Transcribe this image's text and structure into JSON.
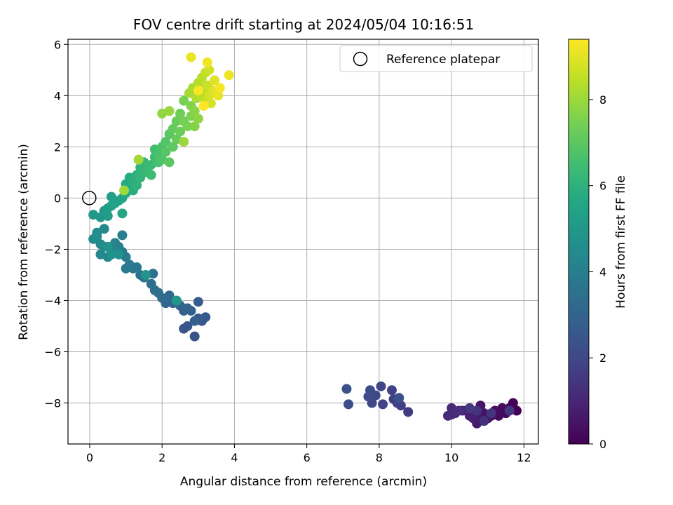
{
  "chart_data": {
    "type": "scatter",
    "title": "FOV centre drift starting at 2024/05/04 10:16:51",
    "xlabel": "Angular distance from reference (arcmin)",
    "ylabel": "Rotation from reference (arcmin)",
    "xlim": [
      -0.6,
      12.4
    ],
    "ylim": [
      -9.6,
      6.2
    ],
    "xticks": [
      0,
      2,
      4,
      6,
      8,
      10,
      12
    ],
    "yticks": [
      -8,
      -6,
      -4,
      -2,
      0,
      2,
      4,
      6
    ],
    "grid": true,
    "legend": {
      "placement": "top-right",
      "entries": [
        "Reference platepar"
      ]
    },
    "reference_point": {
      "x": 0,
      "y": 0
    },
    "colorbar": {
      "label": "Hours from first FF file",
      "colormap": "viridis",
      "range": [
        0,
        9.4
      ],
      "ticks": [
        0,
        2,
        4,
        6,
        8
      ]
    },
    "series": [
      {
        "points": [
          [
            11.8,
            -8.3
          ],
          [
            11.7,
            -8.0
          ],
          [
            11.6,
            -8.2
          ],
          [
            11.5,
            -8.4
          ],
          [
            11.4,
            -8.2
          ],
          [
            11.3,
            -8.5
          ],
          [
            11.2,
            -8.3
          ],
          [
            11.1,
            -8.5
          ],
          [
            11.0,
            -8.6
          ],
          [
            10.9,
            -8.4
          ],
          [
            10.8,
            -8.1
          ],
          [
            10.8,
            -8.6
          ],
          [
            10.7,
            -8.8
          ],
          [
            10.6,
            -8.4
          ],
          [
            10.6,
            -8.6
          ],
          [
            10.5,
            -8.5
          ],
          [
            10.4,
            -8.3
          ],
          [
            10.3,
            -8.3
          ],
          [
            10.1,
            -8.4
          ],
          [
            10.0,
            -8.2
          ],
          [
            9.9,
            -8.5
          ],
          [
            10.0,
            -8.45
          ],
          [
            10.2,
            -8.3
          ],
          [
            10.9,
            -8.7
          ],
          [
            10.7,
            -8.3
          ],
          [
            11.1,
            -8.4
          ],
          [
            11.6,
            -8.3
          ],
          [
            10.5,
            -8.2
          ],
          [
            8.8,
            -8.35
          ],
          [
            8.6,
            -8.1
          ],
          [
            8.5,
            -8.0
          ],
          [
            8.4,
            -7.85
          ],
          [
            8.35,
            -7.5
          ],
          [
            8.1,
            -8.05
          ],
          [
            8.05,
            -7.35
          ],
          [
            7.9,
            -7.7
          ],
          [
            7.8,
            -8.0
          ],
          [
            7.75,
            -7.5
          ],
          [
            7.7,
            -7.75
          ],
          [
            7.15,
            -8.05
          ],
          [
            7.1,
            -7.45
          ],
          [
            8.55,
            -7.8
          ],
          [
            2.9,
            -5.4
          ],
          [
            2.7,
            -5.0
          ],
          [
            2.6,
            -5.1
          ],
          [
            3.2,
            -4.65
          ],
          [
            3.1,
            -4.8
          ],
          [
            3.0,
            -4.7
          ],
          [
            3.0,
            -4.05
          ],
          [
            2.9,
            -4.8
          ],
          [
            2.8,
            -4.4
          ],
          [
            2.7,
            -4.3
          ],
          [
            2.6,
            -4.4
          ],
          [
            2.5,
            -4.2
          ],
          [
            2.3,
            -4.1
          ],
          [
            2.2,
            -3.8
          ],
          [
            2.1,
            -4.1
          ],
          [
            2.0,
            -3.9
          ],
          [
            1.9,
            -3.7
          ],
          [
            1.8,
            -3.6
          ],
          [
            1.7,
            -3.35
          ],
          [
            1.75,
            -2.95
          ],
          [
            1.5,
            -3.1
          ],
          [
            1.4,
            -3.0
          ],
          [
            1.3,
            -2.7
          ],
          [
            1.2,
            -2.75
          ],
          [
            1.1,
            -2.6
          ],
          [
            1.0,
            -2.75
          ],
          [
            0.9,
            -2.1
          ],
          [
            1.0,
            -2.3
          ],
          [
            0.9,
            -1.45
          ],
          [
            0.8,
            -1.9
          ],
          [
            0.7,
            -1.75
          ],
          [
            0.6,
            -2.1
          ],
          [
            0.5,
            -2.3
          ],
          [
            0.4,
            -1.9
          ],
          [
            0.3,
            -2.2
          ],
          [
            0.3,
            -1.8
          ],
          [
            0.4,
            -1.2
          ],
          [
            0.2,
            -1.35
          ],
          [
            0.1,
            -1.6
          ],
          [
            0.2,
            -1.5
          ],
          [
            0.6,
            -2.2
          ],
          [
            0.8,
            -2.2
          ],
          [
            0.5,
            -1.9
          ],
          [
            1.55,
            -3.0
          ],
          [
            2.4,
            -4.0
          ],
          [
            0.1,
            -0.65
          ],
          [
            0.3,
            -0.75
          ],
          [
            0.4,
            -0.5
          ],
          [
            0.5,
            -0.7
          ],
          [
            0.5,
            -0.4
          ],
          [
            0.6,
            -0.3
          ],
          [
            0.6,
            0.05
          ],
          [
            0.7,
            -0.2
          ],
          [
            0.8,
            -0.1
          ],
          [
            0.9,
            0.0
          ],
          [
            0.9,
            -0.6
          ],
          [
            1.0,
            0.2
          ],
          [
            1.0,
            0.55
          ],
          [
            1.1,
            0.4
          ],
          [
            1.1,
            0.8
          ],
          [
            1.2,
            0.3
          ],
          [
            1.2,
            0.7
          ],
          [
            1.3,
            0.9
          ],
          [
            1.3,
            0.5
          ],
          [
            1.4,
            1.2
          ],
          [
            1.4,
            0.8
          ],
          [
            1.5,
            1.0
          ],
          [
            1.5,
            1.4
          ],
          [
            1.6,
            1.1
          ],
          [
            1.7,
            1.3
          ],
          [
            1.7,
            0.9
          ],
          [
            1.8,
            1.6
          ],
          [
            1.8,
            1.9
          ],
          [
            1.9,
            1.4
          ],
          [
            1.9,
            1.7
          ],
          [
            2.0,
            2.0
          ],
          [
            2.0,
            1.5
          ],
          [
            2.1,
            2.2
          ],
          [
            2.1,
            1.8
          ],
          [
            2.2,
            2.5
          ],
          [
            2.2,
            1.4
          ],
          [
            2.3,
            2.0
          ],
          [
            2.3,
            2.7
          ],
          [
            2.4,
            2.3
          ],
          [
            2.4,
            3.0
          ],
          [
            2.5,
            2.6
          ],
          [
            2.5,
            3.3
          ],
          [
            2.6,
            3.0
          ],
          [
            2.6,
            3.8
          ],
          [
            2.7,
            2.8
          ],
          [
            2.8,
            3.2
          ],
          [
            2.8,
            3.6
          ],
          [
            2.9,
            2.8
          ],
          [
            2.9,
            3.4
          ],
          [
            3.0,
            3.1
          ],
          [
            2.0,
            3.3
          ],
          [
            2.2,
            3.4
          ],
          [
            2.6,
            2.2
          ],
          [
            0.95,
            0.3
          ],
          [
            1.35,
            1.5
          ],
          [
            2.75,
            4.1
          ],
          [
            2.85,
            4.3
          ],
          [
            2.95,
            3.9
          ],
          [
            3.0,
            4.5
          ],
          [
            3.05,
            4.0
          ],
          [
            3.1,
            4.7
          ],
          [
            3.15,
            4.2
          ],
          [
            3.2,
            4.9
          ],
          [
            3.2,
            3.8
          ],
          [
            3.25,
            4.4
          ],
          [
            3.3,
            5.0
          ],
          [
            3.3,
            4.0
          ],
          [
            3.35,
            3.7
          ],
          [
            3.4,
            4.2
          ],
          [
            3.45,
            4.6
          ],
          [
            3.5,
            4.1
          ],
          [
            3.55,
            4.0
          ],
          [
            2.8,
            5.5
          ],
          [
            3.85,
            4.8
          ],
          [
            3.25,
            5.3
          ],
          [
            3.6,
            4.3
          ],
          [
            3.0,
            4.2
          ],
          [
            3.15,
            3.6
          ]
        ]
      }
    ]
  }
}
